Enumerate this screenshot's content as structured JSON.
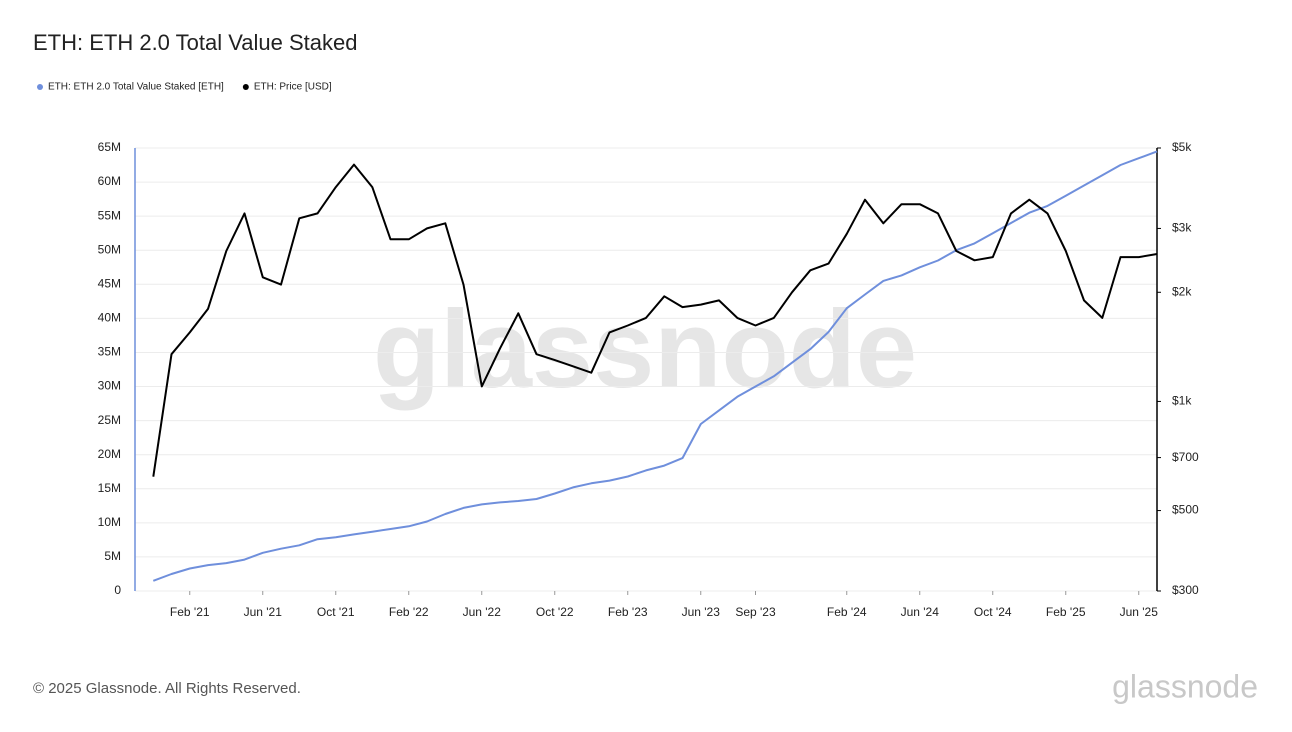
{
  "chart_data": {
    "type": "line",
    "title": "ETH: ETH 2.0 Total Value Staked",
    "footer": "© 2025 Glassnode. All Rights Reserved.",
    "logo": "glassnode",
    "watermark": "glassnode",
    "x": [
      "2020-12",
      "2021-01",
      "2021-02",
      "2021-03",
      "2021-04",
      "2021-05",
      "2021-06",
      "2021-07",
      "2021-08",
      "2021-09",
      "2021-10",
      "2021-11",
      "2021-12",
      "2022-01",
      "2022-02",
      "2022-03",
      "2022-04",
      "2022-05",
      "2022-06",
      "2022-07",
      "2022-08",
      "2022-09",
      "2022-10",
      "2022-11",
      "2022-12",
      "2023-01",
      "2023-02",
      "2023-03",
      "2023-04",
      "2023-05",
      "2023-06",
      "2023-07",
      "2023-08",
      "2023-09",
      "2023-10",
      "2023-11",
      "2023-12",
      "2024-01",
      "2024-02",
      "2024-03",
      "2024-04",
      "2024-05",
      "2024-06",
      "2024-07",
      "2024-08",
      "2024-09",
      "2024-10",
      "2024-11",
      "2024-12",
      "2025-01",
      "2025-02",
      "2025-03",
      "2025-04",
      "2025-05",
      "2025-06",
      "2025-07"
    ],
    "xlim": [
      "2020-11",
      "2025-07"
    ],
    "xticks": [
      {
        "value": "2021-02",
        "label": "Feb '21"
      },
      {
        "value": "2021-06",
        "label": "Jun '21"
      },
      {
        "value": "2021-10",
        "label": "Oct '21"
      },
      {
        "value": "2022-02",
        "label": "Feb '22"
      },
      {
        "value": "2022-06",
        "label": "Jun '22"
      },
      {
        "value": "2022-10",
        "label": "Oct '22"
      },
      {
        "value": "2023-02",
        "label": "Feb '23"
      },
      {
        "value": "2023-06",
        "label": "Jun '23"
      },
      {
        "value": "2023-09",
        "label": "Sep '23"
      },
      {
        "value": "2024-02",
        "label": "Feb '24"
      },
      {
        "value": "2024-06",
        "label": "Jun '24"
      },
      {
        "value": "2024-10",
        "label": "Oct '24"
      },
      {
        "value": "2025-02",
        "label": "Feb '25"
      },
      {
        "value": "2025-06",
        "label": "Jun '25"
      }
    ],
    "ylim": [
      0,
      65000000
    ],
    "yticks": [
      0,
      {
        "value": 5000000,
        "label": "5M"
      },
      {
        "value": 10000000,
        "label": "10M"
      },
      {
        "value": 15000000,
        "label": "15M"
      },
      {
        "value": 20000000,
        "label": "20M"
      },
      {
        "value": 25000000,
        "label": "25M"
      },
      {
        "value": 30000000,
        "label": "30M"
      },
      {
        "value": 35000000,
        "label": "35M"
      },
      {
        "value": 40000000,
        "label": "40M"
      },
      {
        "value": 45000000,
        "label": "45M"
      },
      {
        "value": 50000000,
        "label": "50M"
      },
      {
        "value": 55000000,
        "label": "55M"
      },
      {
        "value": 60000000,
        "label": "60M"
      },
      {
        "value": 65000000,
        "label": "65M"
      }
    ],
    "y2lim": [
      300,
      5000
    ],
    "y2log": true,
    "y2ticks": [
      {
        "value": 300,
        "label": "$300"
      },
      {
        "value": 500,
        "label": "$500"
      },
      {
        "value": 700,
        "label": "$700"
      },
      {
        "value": 1000,
        "label": "$1k"
      },
      {
        "value": 2000,
        "label": "$2k"
      },
      {
        "value": 3000,
        "label": "$3k"
      },
      {
        "value": 5000,
        "label": "$5k"
      }
    ],
    "grid": true,
    "legend": "top-left",
    "series": [
      {
        "name": "ETH: ETH 2.0 Total Value Staked [ETH]",
        "color": "#6f8fdc",
        "axis": "y",
        "values": [
          1500000,
          2500000,
          3300000,
          3800000,
          4100000,
          4600000,
          5600000,
          6200000,
          6700000,
          7600000,
          7900000,
          8300000,
          8700000,
          9100000,
          9500000,
          10200000,
          11300000,
          12200000,
          12700000,
          13000000,
          13200000,
          13500000,
          14300000,
          15200000,
          15800000,
          16200000,
          16800000,
          17700000,
          18400000,
          19500000,
          24500000,
          26500000,
          28500000,
          30000000,
          31500000,
          33500000,
          35500000,
          38000000,
          41500000,
          43500000,
          45500000,
          46300000,
          47500000,
          48500000,
          50000000,
          51000000,
          52500000,
          54000000,
          55500000,
          56500000,
          58000000,
          59500000,
          61000000,
          62500000,
          63500000,
          64500000
        ]
      },
      {
        "name": "ETH: Price [USD]",
        "color": "#000000",
        "axis": "y2",
        "values": [
          620,
          1350,
          1550,
          1800,
          2600,
          3300,
          2200,
          2100,
          3200,
          3300,
          3900,
          4500,
          3900,
          2800,
          2800,
          3000,
          3100,
          2100,
          1100,
          1400,
          1750,
          1350,
          1300,
          1250,
          1200,
          1550,
          1620,
          1700,
          1950,
          1820,
          1850,
          1900,
          1700,
          1620,
          1700,
          2000,
          2300,
          2400,
          2900,
          3600,
          3100,
          3500,
          3500,
          3300,
          2600,
          2450,
          2500,
          3300,
          3600,
          3300,
          2600,
          1900,
          1700,
          2500,
          2500,
          2550
        ]
      }
    ]
  }
}
